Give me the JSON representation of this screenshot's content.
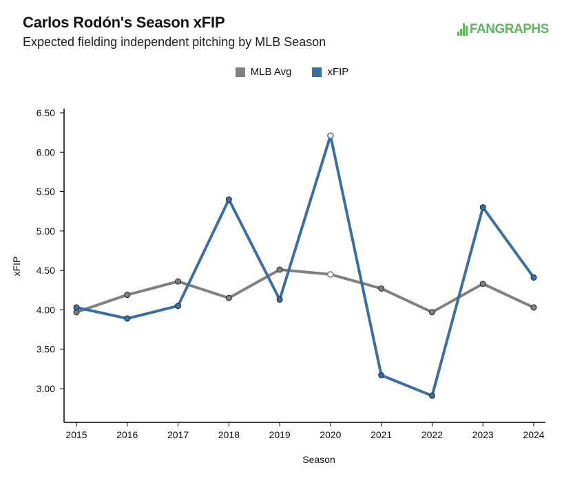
{
  "header": {
    "title": "Carlos Rodón's Season xFIP",
    "subtitle": "Expected fielding independent pitching by MLB Season",
    "logo_text": "FANGRAPHS"
  },
  "colors": {
    "mlb_avg": "#808080",
    "xfip": "#3a6ea5",
    "logo": "#5cb85c"
  },
  "chart_data": {
    "type": "line",
    "xlabel": "Season",
    "ylabel": "xFIP",
    "x": [
      2015,
      2016,
      2017,
      2018,
      2019,
      2020,
      2021,
      2022,
      2023,
      2024
    ],
    "ylim": [
      2.75,
      6.55
    ],
    "yticks": [
      "3.00",
      "3.50",
      "4.00",
      "4.50",
      "5.00",
      "5.50",
      "6.00",
      "6.50"
    ],
    "legend_position": "top-center",
    "grid": false,
    "series": [
      {
        "name": "MLB Avg",
        "color": "#808080",
        "values": [
          3.97,
          4.19,
          4.36,
          4.15,
          4.51,
          4.45,
          4.27,
          3.97,
          4.33,
          4.03
        ]
      },
      {
        "name": "xFIP",
        "color": "#3a6ea5",
        "values": [
          4.03,
          3.89,
          4.05,
          5.4,
          4.13,
          6.21,
          3.17,
          2.91,
          5.3,
          4.41
        ]
      }
    ],
    "hollow_points": [
      2020
    ]
  }
}
